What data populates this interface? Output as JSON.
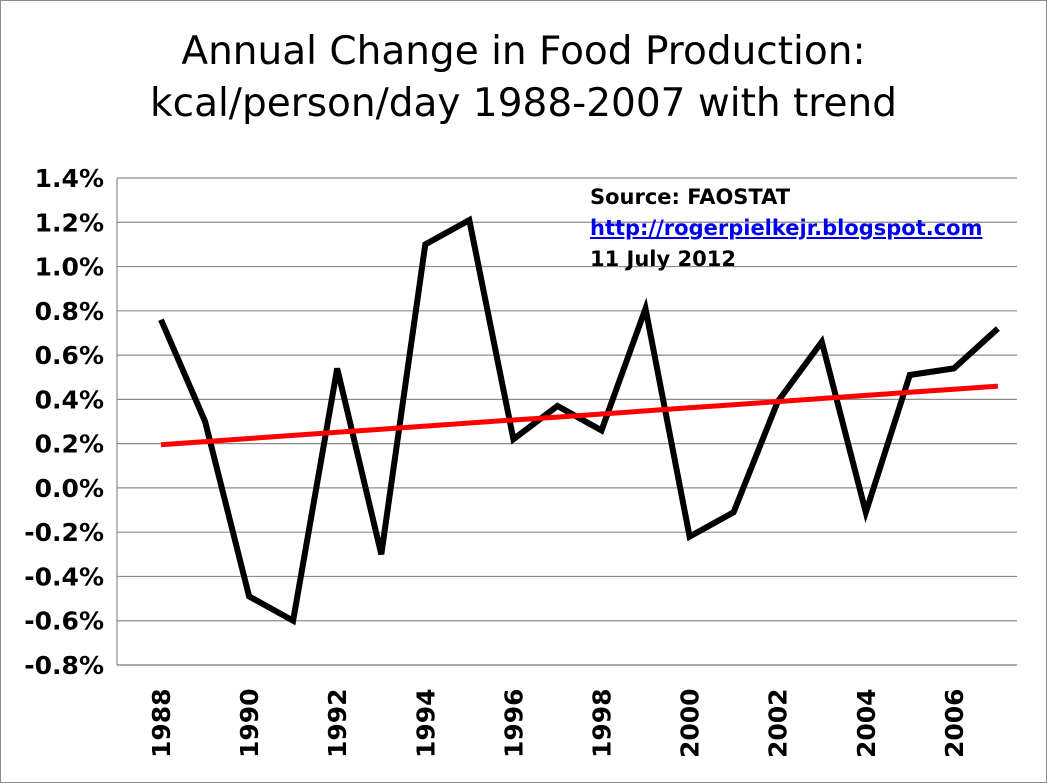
{
  "chart_data": {
    "type": "line",
    "title": [
      "Annual Change in Food Production:",
      "kcal/person/day 1988-2007 with trend"
    ],
    "xlabel": "",
    "ylabel": "",
    "x": [
      1988,
      1989,
      1990,
      1991,
      1992,
      1993,
      1994,
      1995,
      1996,
      1997,
      1998,
      1999,
      2000,
      2001,
      2002,
      2003,
      2004,
      2005,
      2006,
      2007
    ],
    "x_ticks": [
      "1988",
      "1990",
      "1992",
      "1994",
      "1996",
      "1998",
      "2000",
      "2002",
      "2004",
      "2006"
    ],
    "ylim": [
      -0.8,
      1.4
    ],
    "y_ticks": [
      "1.4%",
      "1.2%",
      "1.0%",
      "0.8%",
      "0.6%",
      "0.4%",
      "0.2%",
      "0.0%",
      "-0.2%",
      "-0.4%",
      "-0.6%",
      "-0.8%"
    ],
    "grid": "horizontal",
    "series": [
      {
        "values": [
          0.76,
          0.3,
          -0.49,
          -0.6,
          0.54,
          -0.3,
          1.1,
          1.21,
          0.22,
          0.37,
          0.26,
          0.81,
          -0.22,
          -0.11,
          0.39,
          0.66,
          -0.11,
          0.51,
          0.54,
          0.72
        ],
        "color": "#000000"
      },
      {
        "values": [
          0.195,
          0.209,
          0.223,
          0.237,
          0.251,
          0.265,
          0.279,
          0.293,
          0.307,
          0.32,
          0.334,
          0.348,
          0.362,
          0.376,
          0.39,
          0.404,
          0.418,
          0.432,
          0.446,
          0.46
        ],
        "color": "#ff0000"
      }
    ],
    "annotations": {
      "source": "Source: FAOSTAT",
      "url": "http://rogerpielkejr.blogspot.com",
      "date": "11 July 2012"
    }
  }
}
